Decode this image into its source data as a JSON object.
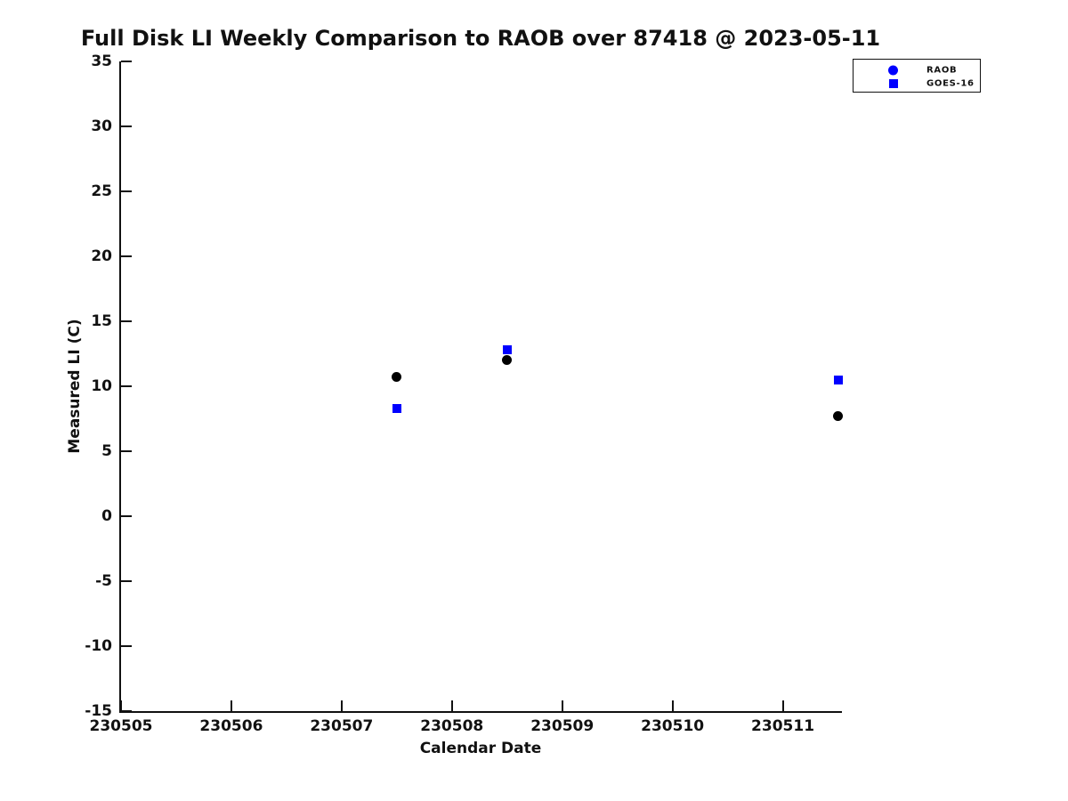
{
  "title": "Full Disk LI Weekly Comparison to RAOB over 87418 @ 2023-05-11",
  "chart_data": {
    "type": "scatter",
    "title": "Full Disk LI Weekly Comparison to RAOB over 87418 @ 2023-05-11",
    "xlabel": "Calendar Date",
    "ylabel": "Measured LI (C)",
    "xlim": [
      230505,
      230511.52
    ],
    "ylim": [
      -15,
      35
    ],
    "x_ticks": [
      230505,
      230506,
      230507,
      230508,
      230509,
      230510,
      230511
    ],
    "y_ticks": [
      -15,
      -10,
      -5,
      0,
      5,
      10,
      15,
      20,
      25,
      30,
      35
    ],
    "grid": false,
    "legend_position": "top-right-outside",
    "series": [
      {
        "name": "RAOB",
        "marker": "circle",
        "color": "#000000",
        "legend_color": "#0000FF",
        "points": [
          {
            "x": 230507.5,
            "y": 10.7
          },
          {
            "x": 230508.5,
            "y": 12.0
          },
          {
            "x": 230511.5,
            "y": 7.7
          }
        ]
      },
      {
        "name": "GOES-16",
        "marker": "square",
        "color": "#0000FF",
        "legend_color": "#0000FF",
        "points": [
          {
            "x": 230507.5,
            "y": 8.3
          },
          {
            "x": 230508.5,
            "y": 12.8
          },
          {
            "x": 230511.5,
            "y": 10.5
          }
        ]
      }
    ]
  },
  "colors": {
    "axis": "#111111",
    "blue": "#0000FF",
    "black": "#000000",
    "background": "#ffffff"
  }
}
